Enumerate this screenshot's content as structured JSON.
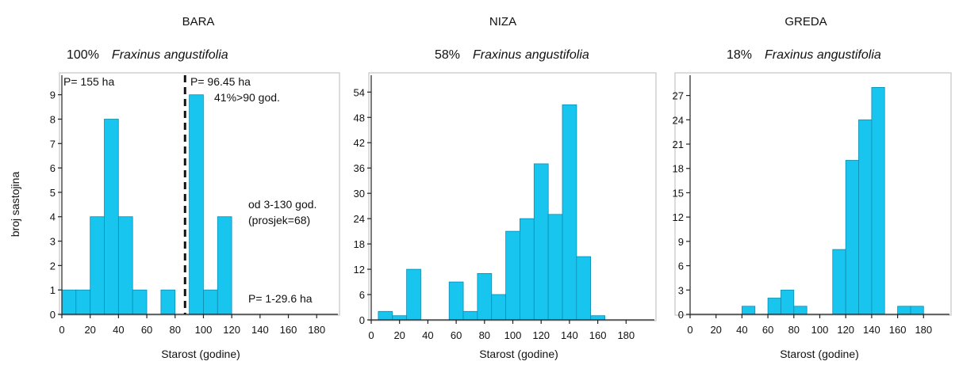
{
  "ylabel": "broj sastojina",
  "chart_data": [
    {
      "type": "bar",
      "title": "BARA",
      "subtitle_percent": "100%",
      "subtitle_species": "Fraxinus angustifolia",
      "xlabel": "Starost (godine)",
      "ylabel": "broj sastojina",
      "bin_width": 10,
      "xlim": [
        0,
        195
      ],
      "ylim": [
        0,
        9.8
      ],
      "xticks": [
        0,
        20,
        40,
        60,
        80,
        100,
        120,
        140,
        160,
        180
      ],
      "yticks": [
        0,
        1,
        2,
        3,
        4,
        5,
        6,
        7,
        8,
        9
      ],
      "bins_start": [
        0,
        10,
        20,
        30,
        40,
        50,
        60,
        70,
        80,
        90,
        100,
        110,
        120
      ],
      "values": [
        1,
        1,
        4,
        8,
        4,
        1,
        0,
        1,
        0,
        9,
        1,
        4,
        0
      ],
      "divider_x": 87,
      "annotations": {
        "left_area": "P= 155 ha",
        "right_area": "P= 96.45 ha",
        "share_over_90": "41%>90 god.",
        "range_line1": "od 3-130 god.",
        "range_line2": "(prosjek=68)",
        "size_range": "P= 1-29.6 ha"
      }
    },
    {
      "type": "bar",
      "title": "NIZA",
      "subtitle_percent": "58%",
      "subtitle_species": "Fraxinus angustifolia",
      "xlabel": "Starost (godine)",
      "ylabel": "",
      "bin_width": 10,
      "xlim": [
        0,
        200
      ],
      "ylim": [
        0,
        58
      ],
      "xticks": [
        0,
        20,
        40,
        60,
        80,
        100,
        120,
        140,
        160,
        180
      ],
      "yticks": [
        0,
        6,
        12,
        18,
        24,
        30,
        36,
        42,
        48,
        54
      ],
      "bins_start": [
        5,
        15,
        25,
        35,
        45,
        55,
        65,
        75,
        85,
        95,
        105,
        115,
        125,
        135,
        145,
        155
      ],
      "values": [
        2,
        1,
        12,
        0,
        0,
        9,
        2,
        11,
        6,
        21,
        24,
        37,
        25,
        51,
        15,
        1
      ]
    },
    {
      "type": "bar",
      "title": "GREDA",
      "subtitle_percent": "18%",
      "subtitle_species": "Fraxinus angustifolia",
      "xlabel": "Starost (godine)",
      "ylabel": "",
      "bin_width": 10,
      "xlim": [
        0,
        200
      ],
      "ylim": [
        0,
        29.5
      ],
      "xticks": [
        0,
        20,
        40,
        60,
        80,
        100,
        120,
        140,
        160,
        180
      ],
      "yticks": [
        0,
        3,
        6,
        9,
        12,
        15,
        18,
        21,
        24,
        27
      ],
      "bins_start": [
        40,
        60,
        70,
        80,
        110,
        120,
        130,
        140,
        160,
        170
      ],
      "values": [
        1,
        2,
        3,
        1,
        8,
        19,
        24,
        28,
        1,
        1
      ]
    }
  ]
}
